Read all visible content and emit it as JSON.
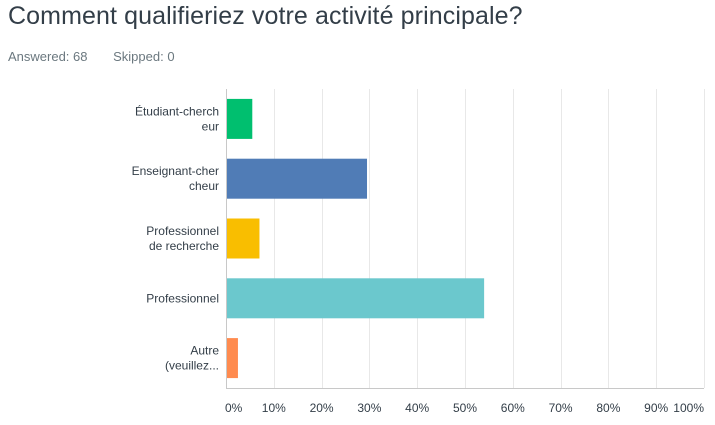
{
  "question": {
    "title": "Comment qualifieriez votre activité principale?",
    "answered_label": "Answered: 68",
    "skipped_label": "Skipped: 0"
  },
  "chart_data": {
    "type": "bar",
    "orientation": "horizontal",
    "categories": [
      [
        "Étudiant-cherch",
        "eur"
      ],
      [
        "Enseignant-cher",
        "cheur"
      ],
      [
        "Professionnel",
        "de recherche"
      ],
      [
        "Professionnel"
      ],
      [
        "Autre",
        "(veuillez..."
      ]
    ],
    "values": [
      5.5,
      29.5,
      7,
      54,
      2.5
    ],
    "colors": [
      "#00bf6f",
      "#507cb6",
      "#f9be00",
      "#6bc8cd",
      "#ff8b4f"
    ],
    "xlim": [
      0,
      100
    ],
    "xticks": [
      "0%",
      "10%",
      "20%",
      "30%",
      "40%",
      "50%",
      "60%",
      "70%",
      "80%",
      "90%",
      "100%"
    ],
    "grid": true
  }
}
